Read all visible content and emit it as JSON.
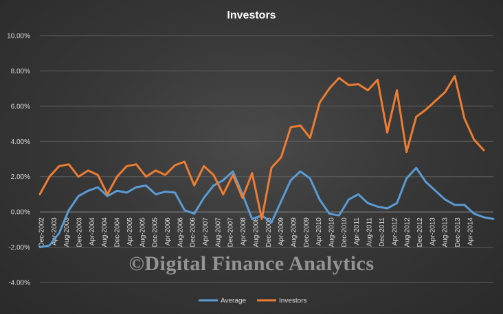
{
  "chart_data": {
    "type": "line",
    "title": "Investors",
    "xlabel": "",
    "ylabel": "",
    "ylim": [
      -4,
      10
    ],
    "y_ticks": [
      -4,
      -2,
      0,
      2,
      4,
      6,
      8,
      10
    ],
    "y_tick_format": "percent_2dp",
    "grid": true,
    "legend_position": "bottom",
    "x_tick_labels": [
      "Dec-2002",
      "Apr-2003",
      "Aug-2003",
      "Dec-2003",
      "Apr-2004",
      "Aug-2004",
      "Dec-2004",
      "Apr-2005",
      "Aug-2005",
      "Dec-2005",
      "Apr-2006",
      "Aug-2006",
      "Dec-2006",
      "Apr-2007",
      "Aug-2007",
      "Dec-2007",
      "Apr-2008",
      "Aug-2008",
      "Dec-2008",
      "Apr-2009",
      "Aug-2009",
      "Dec-2009",
      "Apr-2010",
      "Aug-2010",
      "Dec-2010",
      "Apr-2011",
      "Aug-2011",
      "Dec-2011",
      "Apr-2012",
      "Aug-2012",
      "Dec-2012",
      "Apr-2013",
      "Aug-2013",
      "Dec-2013",
      "Apr-2014"
    ],
    "series": [
      {
        "name": "Average",
        "color": "#5b9bd5",
        "values": [
          -2.0,
          -1.9,
          -1.2,
          0.1,
          0.9,
          1.2,
          1.4,
          0.9,
          1.2,
          1.1,
          1.4,
          1.5,
          1.0,
          1.15,
          1.1,
          0.1,
          -0.1,
          0.8,
          1.5,
          1.8,
          2.3,
          1.0,
          -0.4,
          -0.2,
          -0.6,
          0.6,
          1.8,
          2.3,
          1.9,
          0.7,
          -0.1,
          -0.2,
          0.7,
          1.0,
          0.5,
          0.3,
          0.2,
          0.5,
          1.9,
          2.5,
          1.7,
          1.2,
          0.7,
          0.4,
          0.4,
          -0.1,
          -0.3,
          -0.4
        ]
      },
      {
        "name": "Investors",
        "color": "#ed7d31",
        "values": [
          1.0,
          2.0,
          2.6,
          2.7,
          2.0,
          2.35,
          2.1,
          1.0,
          2.0,
          2.6,
          2.7,
          2.0,
          2.35,
          2.1,
          2.65,
          2.85,
          1.5,
          2.6,
          2.1,
          1.0,
          2.1,
          0.8,
          2.2,
          -0.4,
          2.5,
          3.1,
          4.8,
          4.9,
          4.2,
          6.2,
          7.0,
          7.6,
          7.2,
          7.25,
          6.9,
          7.5,
          4.5,
          6.9,
          3.4,
          5.4,
          5.8,
          6.3,
          6.8,
          7.7,
          5.3,
          4.1,
          3.5
        ]
      }
    ]
  },
  "watermark": "©Digital Finance Analytics"
}
